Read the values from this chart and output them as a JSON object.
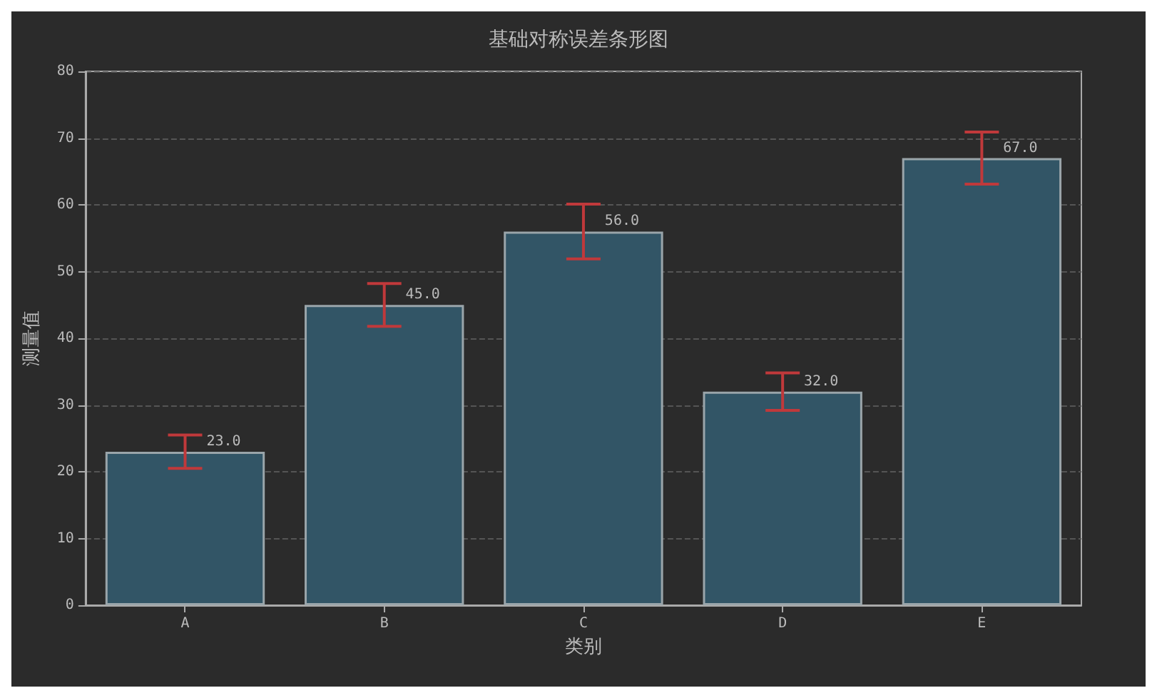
{
  "chart_data": {
    "type": "bar",
    "title": "基础对称误差条形图",
    "xlabel": "类别",
    "ylabel": "测量值",
    "categories": [
      "A",
      "B",
      "C",
      "D",
      "E"
    ],
    "values": [
      23,
      45,
      56,
      32,
      67
    ],
    "errors": [
      2.5,
      3.2,
      4.1,
      2.8,
      3.9
    ],
    "value_labels": [
      "23.0",
      "45.0",
      "56.0",
      "32.0",
      "67.0"
    ],
    "color": "#325566",
    "ylim": [
      0,
      80
    ],
    "yticks": [
      0,
      10,
      20,
      30,
      40,
      50,
      60,
      70,
      80
    ],
    "grid": "y"
  }
}
